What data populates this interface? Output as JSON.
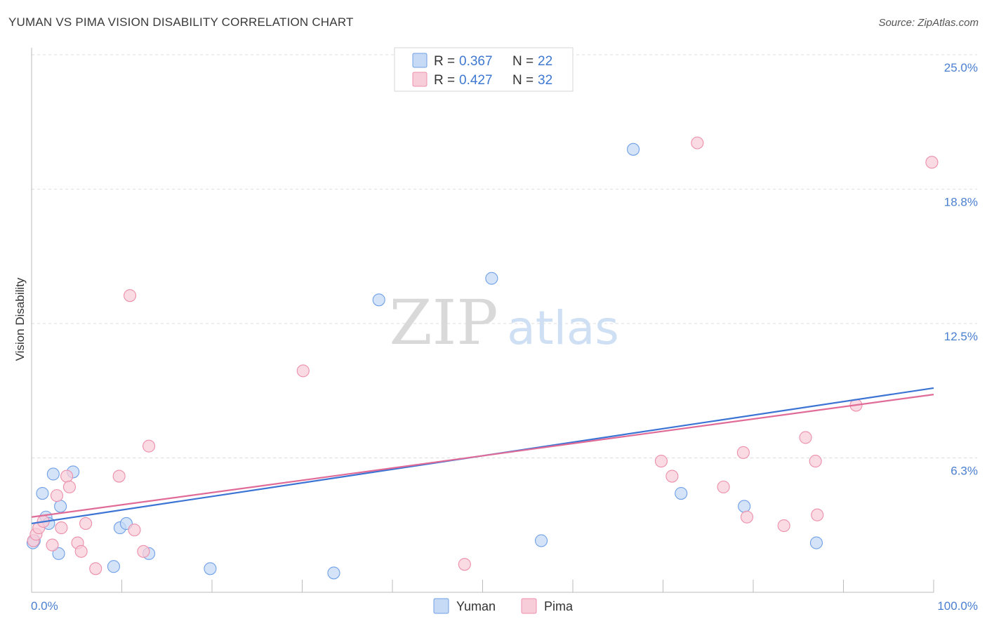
{
  "title": "YUMAN VS PIMA VISION DISABILITY CORRELATION CHART",
  "source": "Source: ZipAtlas.com",
  "watermark": {
    "zip": "ZIP",
    "atlas": "atlas"
  },
  "chart_data": {
    "type": "scatter",
    "ylabel": "Vision Disability",
    "xlim": [
      0,
      100
    ],
    "ylim": [
      0,
      25
    ],
    "x_tick_labels": [
      "0.0%",
      "100.0%"
    ],
    "y_ticks": [
      6.25,
      12.5,
      18.75,
      25
    ],
    "y_tick_labels": [
      "6.3%",
      "12.5%",
      "18.8%",
      "25.0%"
    ],
    "legend": {
      "rows": [
        {
          "r_label": "R =",
          "r_value": "0.367",
          "n_label": "N =",
          "n_value": "22"
        },
        {
          "r_label": "R =",
          "r_value": "0.427",
          "n_label": "N =",
          "n_value": "32"
        }
      ]
    },
    "series": [
      {
        "name": "Yuman",
        "color": "#6fa0e6",
        "fill": "#c6daf6",
        "line_color": "#3b74d4",
        "trend": {
          "x": [
            0,
            100
          ],
          "y": [
            3.2,
            9.5
          ]
        },
        "points": [
          {
            "x": 0.3,
            "y": 2.4
          },
          {
            "x": 1.2,
            "y": 4.6
          },
          {
            "x": 1.6,
            "y": 3.5
          },
          {
            "x": 1.9,
            "y": 3.2
          },
          {
            "x": 2.4,
            "y": 5.5
          },
          {
            "x": 3.0,
            "y": 1.8
          },
          {
            "x": 3.2,
            "y": 4.0
          },
          {
            "x": 4.6,
            "y": 5.6
          },
          {
            "x": 9.1,
            "y": 1.2
          },
          {
            "x": 9.8,
            "y": 3.0
          },
          {
            "x": 10.5,
            "y": 3.2
          },
          {
            "x": 13.0,
            "y": 1.8
          },
          {
            "x": 19.8,
            "y": 1.1
          },
          {
            "x": 33.5,
            "y": 0.9
          },
          {
            "x": 38.5,
            "y": 13.6
          },
          {
            "x": 51.0,
            "y": 14.6
          },
          {
            "x": 56.5,
            "y": 2.4
          },
          {
            "x": 66.7,
            "y": 20.6
          },
          {
            "x": 72.0,
            "y": 4.6
          },
          {
            "x": 79.0,
            "y": 4.0
          },
          {
            "x": 87.0,
            "y": 2.3
          },
          {
            "x": 0.15,
            "y": 2.3
          }
        ]
      },
      {
        "name": "Pima",
        "color": "#ec8fab",
        "fill": "#f8cdda",
        "line_color": "#e06b97",
        "trend": {
          "x": [
            0,
            100
          ],
          "y": [
            3.5,
            9.2
          ]
        },
        "points": [
          {
            "x": 0.2,
            "y": 2.4
          },
          {
            "x": 0.5,
            "y": 2.7
          },
          {
            "x": 0.8,
            "y": 3.0
          },
          {
            "x": 1.3,
            "y": 3.3
          },
          {
            "x": 2.3,
            "y": 2.2
          },
          {
            "x": 2.8,
            "y": 4.5
          },
          {
            "x": 3.3,
            "y": 3.0
          },
          {
            "x": 3.9,
            "y": 5.4
          },
          {
            "x": 4.2,
            "y": 4.9
          },
          {
            "x": 5.1,
            "y": 2.3
          },
          {
            "x": 5.5,
            "y": 1.9
          },
          {
            "x": 6.0,
            "y": 3.2
          },
          {
            "x": 7.1,
            "y": 1.1
          },
          {
            "x": 9.7,
            "y": 5.4
          },
          {
            "x": 10.9,
            "y": 13.8
          },
          {
            "x": 11.4,
            "y": 2.9
          },
          {
            "x": 12.4,
            "y": 1.9
          },
          {
            "x": 13.0,
            "y": 6.8
          },
          {
            "x": 30.1,
            "y": 10.3
          },
          {
            "x": 48.0,
            "y": 1.3
          },
          {
            "x": 69.8,
            "y": 6.1
          },
          {
            "x": 71.0,
            "y": 5.4
          },
          {
            "x": 73.8,
            "y": 20.9
          },
          {
            "x": 76.7,
            "y": 4.9
          },
          {
            "x": 79.3,
            "y": 3.5
          },
          {
            "x": 78.9,
            "y": 6.5
          },
          {
            "x": 83.4,
            "y": 3.1
          },
          {
            "x": 85.8,
            "y": 7.2
          },
          {
            "x": 86.9,
            "y": 6.1
          },
          {
            "x": 87.1,
            "y": 3.6
          },
          {
            "x": 91.4,
            "y": 8.7
          },
          {
            "x": 99.8,
            "y": 20.0
          }
        ]
      }
    ]
  }
}
